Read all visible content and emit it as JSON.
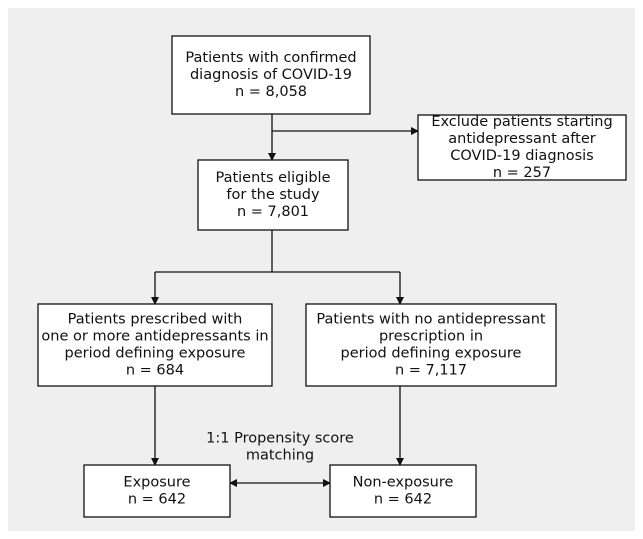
{
  "nodes": [
    {
      "lines": [
        "Patients with confirmed",
        "diagnosis of COVID-19",
        "n = 8,058"
      ]
    },
    {
      "lines": [
        "Exclude patients starting",
        "antidepressant after",
        "COVID-19 diagnosis",
        "n = 257"
      ]
    },
    {
      "lines": [
        "Patients eligible",
        "for the study",
        "n = 7,801"
      ]
    },
    {
      "lines": [
        "Patients prescribed with",
        "one or more antidepressants in",
        "period defining exposure",
        "n = 684"
      ]
    },
    {
      "lines": [
        "Patients with no antidepressant",
        "prescription in",
        "period defining exposure",
        "n = 7,117"
      ]
    },
    {
      "lines": [
        "Exposure",
        "n = 642"
      ]
    },
    {
      "lines": [
        "Non-exposure",
        "n = 642"
      ]
    }
  ],
  "edge_label": {
    "lines": [
      "1:1 Propensity score",
      "matching"
    ]
  }
}
